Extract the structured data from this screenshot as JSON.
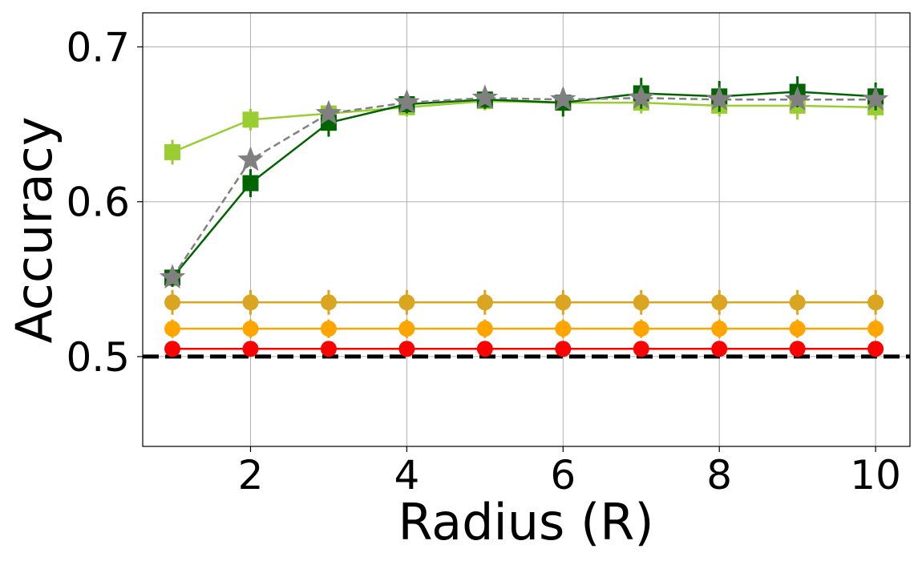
{
  "chart_data": {
    "type": "line",
    "xlabel": "Radius (R)",
    "ylabel": "Accuracy",
    "xlim": [
      0.62,
      10.44
    ],
    "ylim": [
      0.442,
      0.722
    ],
    "xticks": [
      2,
      4,
      6,
      8,
      10
    ],
    "xtick_labels": [
      "2",
      "4",
      "6",
      "8",
      "10"
    ],
    "yticks": [
      0.5,
      0.6,
      0.7
    ],
    "ytick_labels": [
      "0.5",
      "0.6",
      "0.7"
    ],
    "grid": true,
    "legend": "none",
    "x": [
      1,
      2,
      3,
      4,
      5,
      6,
      7,
      8,
      9,
      10
    ],
    "baseline": {
      "value": 0.5,
      "color": "#000000",
      "style": "dashed"
    },
    "series": [
      {
        "color": "#9acd32",
        "marker": "square",
        "linestyle": "solid",
        "values": [
          0.632,
          0.653,
          0.657,
          0.661,
          0.665,
          0.664,
          0.664,
          0.662,
          0.662,
          0.661
        ],
        "errors": [
          0.008,
          0.007,
          0.006,
          0.006,
          0.006,
          0.006,
          0.007,
          0.007,
          0.009,
          0.008
        ]
      },
      {
        "color": "#006400",
        "marker": "square",
        "linestyle": "solid",
        "values": [
          0.551,
          0.612,
          0.651,
          0.663,
          0.666,
          0.664,
          0.67,
          0.668,
          0.671,
          0.668
        ],
        "errors": [
          0.006,
          0.009,
          0.009,
          0.006,
          0.006,
          0.009,
          0.01,
          0.01,
          0.01,
          0.009
        ]
      },
      {
        "color": "#808080",
        "marker": "star",
        "linestyle": "dashed",
        "values": [
          0.551,
          0.627,
          0.657,
          0.664,
          0.667,
          0.666,
          0.667,
          0.666,
          0.666,
          0.666
        ],
        "errors": [
          0.004,
          0.004,
          0.004,
          0.004,
          0.004,
          0.004,
          0.004,
          0.004,
          0.004,
          0.004
        ]
      },
      {
        "color": "#daa520",
        "marker": "circle",
        "linestyle": "solid",
        "values": [
          0.535,
          0.535,
          0.535,
          0.535,
          0.535,
          0.535,
          0.535,
          0.535,
          0.535,
          0.535
        ],
        "errors": [
          0.008,
          0.008,
          0.008,
          0.008,
          0.008,
          0.008,
          0.008,
          0.008,
          0.008,
          0.008
        ]
      },
      {
        "color": "#ffa500",
        "marker": "circle",
        "linestyle": "solid",
        "values": [
          0.518,
          0.518,
          0.518,
          0.518,
          0.518,
          0.518,
          0.518,
          0.518,
          0.518,
          0.518
        ],
        "errors": [
          0.006,
          0.006,
          0.006,
          0.006,
          0.006,
          0.006,
          0.006,
          0.006,
          0.006,
          0.006
        ]
      },
      {
        "color": "#ff0000",
        "marker": "circle",
        "linestyle": "solid",
        "values": [
          0.505,
          0.505,
          0.505,
          0.505,
          0.505,
          0.505,
          0.505,
          0.505,
          0.505,
          0.505
        ],
        "errors": [
          0.002,
          0.002,
          0.002,
          0.002,
          0.002,
          0.002,
          0.002,
          0.002,
          0.002,
          0.002
        ]
      }
    ]
  }
}
